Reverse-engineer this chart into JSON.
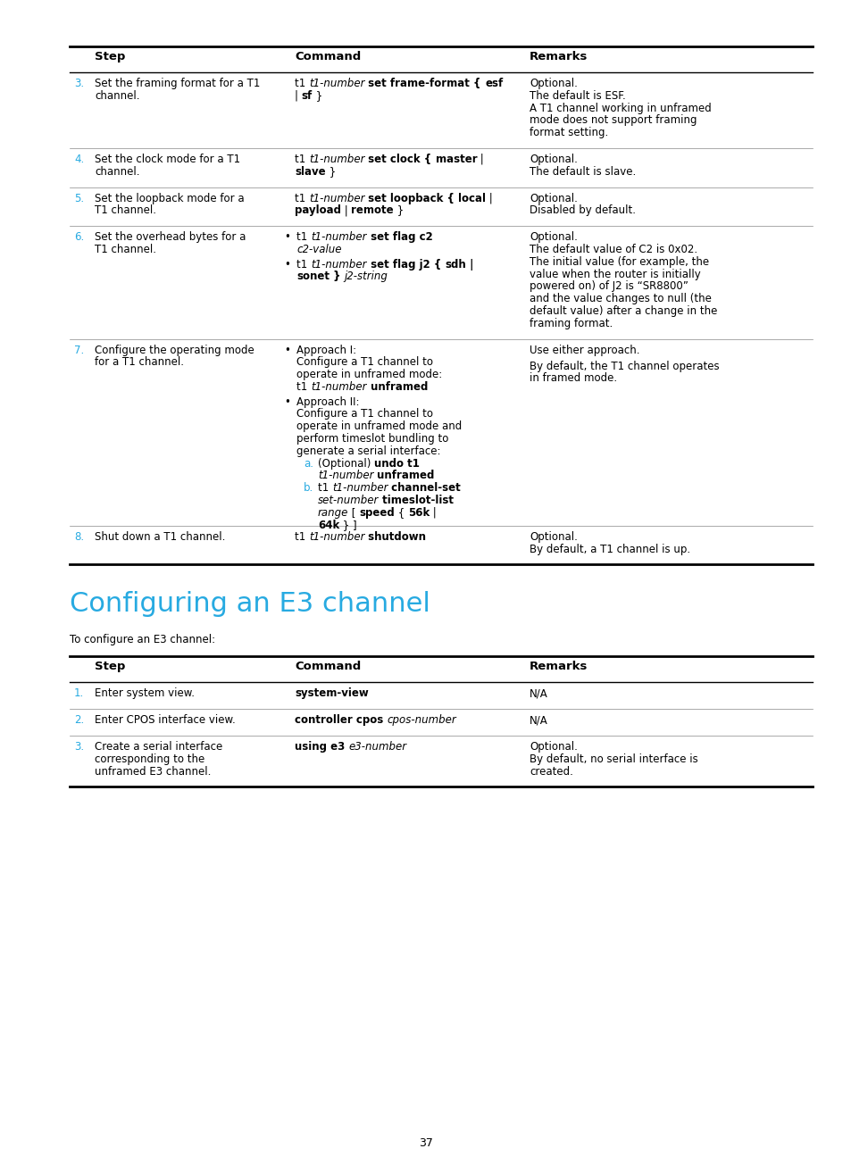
{
  "page_bg": "#ffffff",
  "text_color": "#000000",
  "cyan_color": "#27aae1",
  "title": "Configuring an E3 channel",
  "subtitle": "To configure an E3 channel:",
  "page_number": "37",
  "fig_width": 9.54,
  "fig_height": 12.96,
  "dpi": 100
}
